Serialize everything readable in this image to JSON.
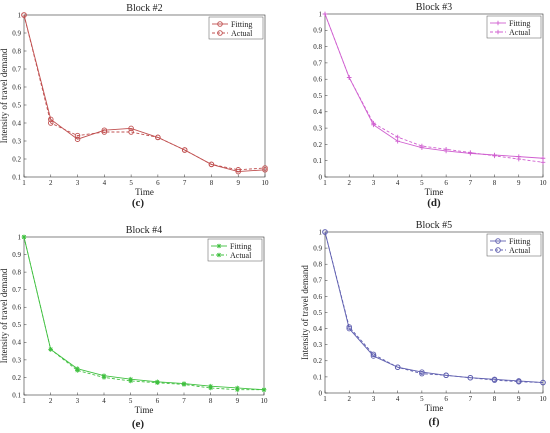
{
  "chart_data": [
    {
      "type": "line",
      "panel_label": "(c)",
      "title": "Block #2",
      "xlabel": "Time",
      "ylabel": "Intensity of travel demand",
      "xlim": [
        1,
        10
      ],
      "ylim": [
        0.1,
        1
      ],
      "x": [
        1,
        2,
        3,
        4,
        5,
        6,
        7,
        8,
        9,
        10
      ],
      "xticks": [
        "1",
        "2",
        "3",
        "4",
        "5",
        "6",
        "7",
        "8",
        "9",
        "10"
      ],
      "yticks": [
        "0.1",
        "0.2",
        "0.3",
        "0.4",
        "0.5",
        "0.6",
        "0.7",
        "0.8",
        "0.9",
        "1"
      ],
      "legend_position": "top-right",
      "color": "#c05050",
      "marker": "circle",
      "series": [
        {
          "name": "Fitting",
          "dash": "solid",
          "values": [
            1.0,
            0.42,
            0.31,
            0.36,
            0.37,
            0.32,
            0.25,
            0.17,
            0.13,
            0.14
          ]
        },
        {
          "name": "Actual",
          "dash": "dashed",
          "values": [
            1.0,
            0.4,
            0.33,
            0.35,
            0.35,
            0.32,
            0.25,
            0.17,
            0.14,
            0.15
          ]
        }
      ]
    },
    {
      "type": "line",
      "panel_label": "(d)",
      "title": "Block #3",
      "xlabel": "Time",
      "ylabel": "",
      "xlim": [
        1,
        10
      ],
      "ylim": [
        0,
        1
      ],
      "x": [
        1,
        2,
        3,
        4,
        5,
        6,
        7,
        8,
        9,
        10
      ],
      "xticks": [
        "1",
        "2",
        "3",
        "4",
        "5",
        "6",
        "7",
        "8",
        "9",
        "10"
      ],
      "yticks": [
        "0",
        "0.1",
        "0.2",
        "0.3",
        "0.4",
        "0.5",
        "0.6",
        "0.7",
        "0.8",
        "0.9",
        "1"
      ],
      "legend_position": "top-right",
      "color": "#d060d0",
      "marker": "plus",
      "series": [
        {
          "name": "Fitting",
          "dash": "solid",
          "values": [
            1.0,
            0.61,
            0.32,
            0.22,
            0.18,
            0.16,
            0.145,
            0.135,
            0.125,
            0.115
          ]
        },
        {
          "name": "Actual",
          "dash": "dashed",
          "values": [
            1.0,
            0.61,
            0.33,
            0.245,
            0.19,
            0.17,
            0.15,
            0.13,
            0.11,
            0.09
          ]
        }
      ]
    },
    {
      "type": "line",
      "panel_label": "(e)",
      "title": "Block #4",
      "xlabel": "Time",
      "ylabel": "Intensity of travel demand",
      "xlim": [
        1,
        10
      ],
      "ylim": [
        0.1,
        1
      ],
      "x": [
        1,
        2,
        3,
        4,
        5,
        6,
        7,
        8,
        9,
        10
      ],
      "xticks": [
        "1",
        "2",
        "3",
        "4",
        "5",
        "6",
        "7",
        "8",
        "9",
        "10"
      ],
      "yticks": [
        "0.1",
        "0.2",
        "0.3",
        "0.4",
        "0.5",
        "0.6",
        "0.7",
        "0.8",
        "0.9",
        "1"
      ],
      "legend_position": "top-right",
      "color": "#40c040",
      "marker": "star",
      "series": [
        {
          "name": "Fitting",
          "dash": "solid",
          "values": [
            1.0,
            0.36,
            0.25,
            0.21,
            0.19,
            0.175,
            0.165,
            0.15,
            0.14,
            0.13
          ]
        },
        {
          "name": "Actual",
          "dash": "dashed",
          "values": [
            1.0,
            0.36,
            0.24,
            0.2,
            0.18,
            0.17,
            0.16,
            0.14,
            0.13,
            0.13
          ]
        }
      ]
    },
    {
      "type": "line",
      "panel_label": "(f)",
      "title": "Block #5",
      "xlabel": "Time",
      "ylabel": "Intensity of travel demand",
      "xlim": [
        1,
        10
      ],
      "ylim": [
        0,
        1
      ],
      "x": [
        1,
        2,
        3,
        4,
        5,
        6,
        7,
        8,
        9,
        10
      ],
      "xticks": [
        "1",
        "2",
        "3",
        "4",
        "5",
        "6",
        "7",
        "8",
        "9",
        "10"
      ],
      "yticks": [
        "0",
        "0.1",
        "0.2",
        "0.3",
        "0.4",
        "0.5",
        "0.6",
        "0.7",
        "0.8",
        "0.9",
        "1"
      ],
      "legend_position": "top-right",
      "color": "#6060b0",
      "marker": "circle",
      "series": [
        {
          "name": "Fitting",
          "dash": "solid",
          "values": [
            1.0,
            0.4,
            0.23,
            0.16,
            0.13,
            0.11,
            0.095,
            0.085,
            0.075,
            0.065
          ]
        },
        {
          "name": "Actual",
          "dash": "dashed",
          "values": [
            1.0,
            0.41,
            0.24,
            0.16,
            0.12,
            0.11,
            0.095,
            0.08,
            0.07,
            0.065
          ]
        }
      ]
    }
  ]
}
